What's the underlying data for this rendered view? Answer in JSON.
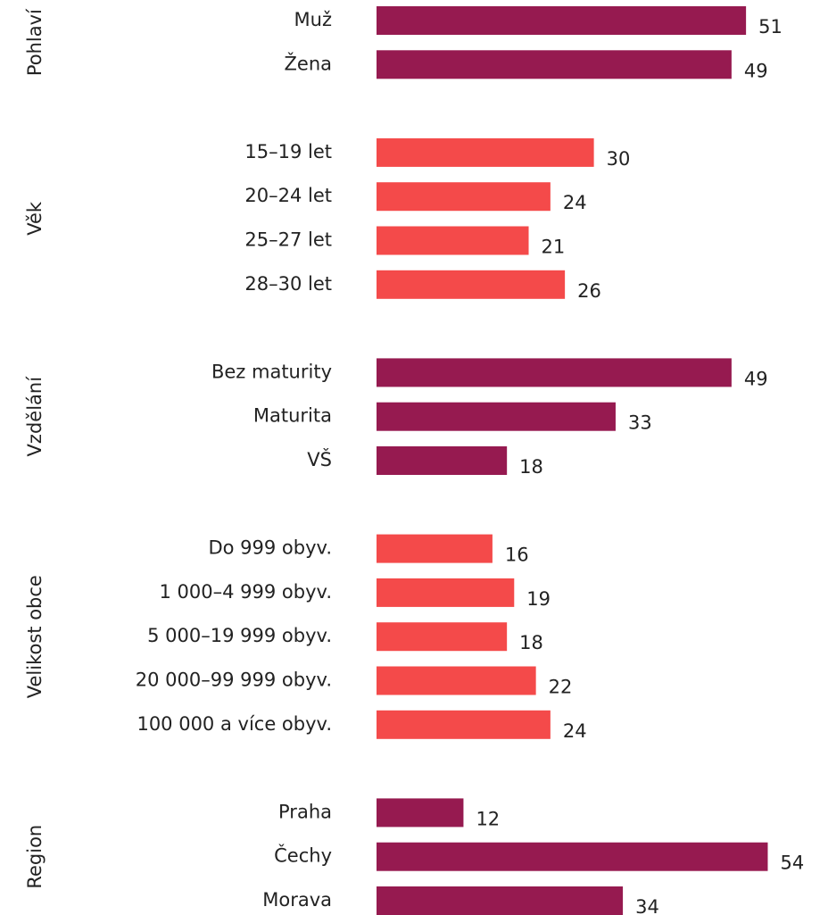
{
  "chart_data": {
    "type": "bar",
    "groups": [
      {
        "name": "Pohlaví",
        "color": "#961a50",
        "categories": [
          "Muž",
          "Žena"
        ],
        "values": [
          51,
          49
        ]
      },
      {
        "name": "Věk",
        "color": "#f44a4a",
        "categories": [
          "15–19 let",
          "20–24 let",
          "25–27 let",
          "28–30 let"
        ],
        "values": [
          30,
          24,
          21,
          26
        ]
      },
      {
        "name": "Vzdělání",
        "color": "#961a50",
        "categories": [
          "Bez maturity",
          "Maturita",
          "VŠ"
        ],
        "values": [
          49,
          33,
          18
        ]
      },
      {
        "name": "Velikost obce",
        "color": "#f44a4a",
        "categories": [
          "Do 999 obyv.",
          "1 000–4 999 obyv.",
          "5 000–19 999 obyv.",
          "20 000–99 999 obyv.",
          "100 000 a více obyv."
        ],
        "values": [
          16,
          19,
          18,
          22,
          24
        ]
      },
      {
        "name": "Region",
        "color": "#961a50",
        "categories": [
          "Praha",
          "Čechy",
          "Morava"
        ],
        "values": [
          12,
          54,
          34
        ]
      }
    ]
  }
}
